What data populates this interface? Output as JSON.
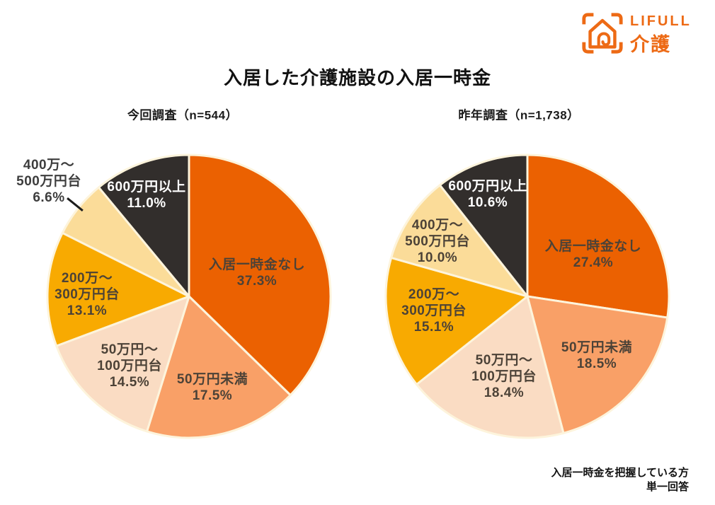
{
  "logo": {
    "brand": "LIFULL",
    "service": "介護",
    "color": "#ED6A15",
    "icon": "house-in-brackets-icon"
  },
  "title": "入居した介護施設の入居一時金",
  "footer": {
    "line1": "入居一時金を把握している方",
    "line2": "単一回答"
  },
  "ui": {
    "background": "#FFFFFF",
    "slice_border": "#FDF4DC",
    "heading_color": "#111111",
    "logo_orange": "#ED6A15"
  },
  "chart_data": [
    {
      "type": "pie",
      "title": "今回調査（n=544）",
      "n": 544,
      "direction": "clockwise",
      "start_angle_deg": 0,
      "legend_position": "labels-on-slices",
      "categories": [
        "入居一時金なし",
        "50万円未満",
        "50万円～100万円台",
        "200万～300万円台",
        "400万～500万円台",
        "600万円以上"
      ],
      "values": [
        37.3,
        17.5,
        14.5,
        13.1,
        6.6,
        11.0
      ],
      "colors": [
        "#EB6101",
        "#F9A067",
        "#FADCC3",
        "#F8AA01",
        "#FBDC99",
        "#322E2C"
      ],
      "labels": [
        "入居一時金なし\n37.3%",
        "50万円未満\n17.5%",
        "50万円～\n100万円台\n14.5%",
        "200万～\n300万円台\n13.1%",
        "400万～\n500万円台\n6.6%",
        "600万円以上\n11.0%"
      ],
      "label_colors": [
        "#4C4237",
        "#4C4237",
        "#4C4237",
        "#4C4237",
        "#3d3d3d",
        "#FFFFFF"
      ]
    },
    {
      "type": "pie",
      "title": "昨年調査（n=1,738）",
      "n": 1738,
      "direction": "clockwise",
      "start_angle_deg": 0,
      "legend_position": "labels-on-slices",
      "categories": [
        "入居一時金なし",
        "50万円未満",
        "50万円～100万円台",
        "200万～300万円台",
        "400万～500万円台",
        "600万円以上"
      ],
      "values": [
        27.4,
        18.5,
        18.4,
        15.1,
        10.0,
        10.6
      ],
      "colors": [
        "#EB6101",
        "#F9A067",
        "#FADCC3",
        "#F8AA01",
        "#FBDC99",
        "#322E2C"
      ],
      "labels": [
        "入居一時金なし\n27.4%",
        "50万円未満\n18.5%",
        "50万円～\n100万円台\n18.4%",
        "200万～\n300万円台\n15.1%",
        "400万～\n500万円台\n10.0%",
        "600万円以上\n10.6%"
      ],
      "label_colors": [
        "#4C4237",
        "#4C4237",
        "#4C4237",
        "#4C4237",
        "#4C4237",
        "#FFFFFF"
      ]
    }
  ]
}
